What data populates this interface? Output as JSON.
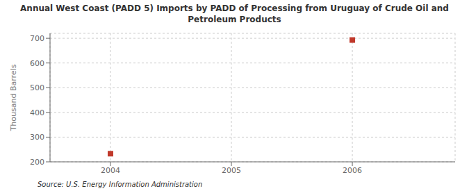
{
  "chart_data": {
    "type": "scatter",
    "title": "Annual West Coast (PADD 5) Imports by PADD of Processing from Uruguay of Crude Oil and\nPetroleum Products",
    "ylabel": "Thousand Barrels",
    "source": "Source: U.S. Energy Information Administration",
    "x": [
      2004,
      2006
    ],
    "values": [
      233,
      693
    ],
    "color": "#c0392b",
    "marker": "square",
    "xlim": [
      2003.5,
      2006.85
    ],
    "ylim": [
      200,
      720
    ],
    "xticks": [
      2004,
      2005,
      2006
    ],
    "yticks": [
      200,
      300,
      400,
      500,
      600,
      700
    ],
    "grid": true
  }
}
